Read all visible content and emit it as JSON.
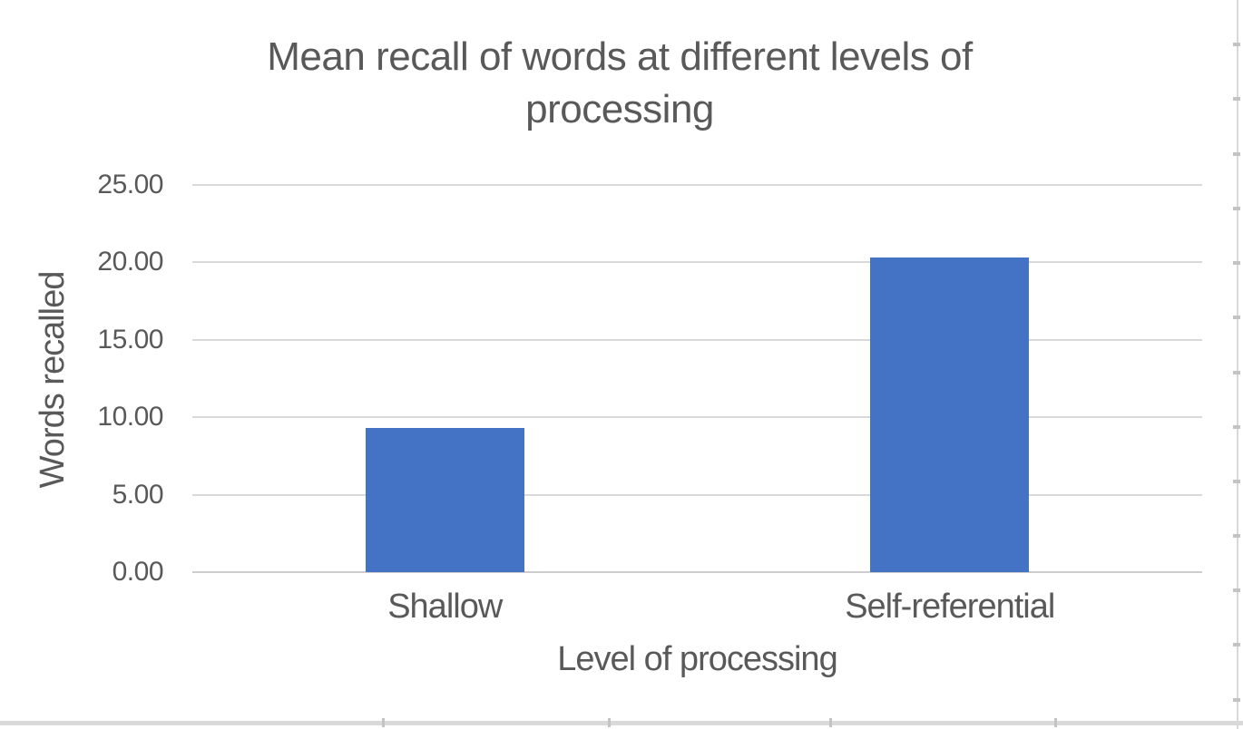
{
  "chart_data": {
    "type": "bar",
    "title": "Mean recall of words at different levels of processing",
    "categories": [
      "Shallow",
      "Self-referential"
    ],
    "values": [
      9.3,
      20.3
    ],
    "xlabel": "Level of processing",
    "ylabel": "Words recalled",
    "ylim": [
      0,
      25
    ],
    "ytick_interval": 5,
    "ytick_labels": [
      "0.00",
      "5.00",
      "10.00",
      "15.00",
      "20.00",
      "25.00"
    ],
    "grid": true,
    "legend": false,
    "bar_color": "#4472C4",
    "gridline_color": "#D9D9D9",
    "axis_line_color": "#CDCDCD",
    "text_color": "#595959"
  },
  "worksheet_edges": {
    "line_color": "#D9D9D9",
    "tick_color": "#C3C3C3",
    "right_tick_ys": [
      47,
      107,
      168,
      228,
      288,
      348,
      409,
      469,
      529,
      589,
      649,
      709,
      770
    ],
    "bottom_tick_xs": [
      421,
      670,
      914,
      1162
    ]
  }
}
